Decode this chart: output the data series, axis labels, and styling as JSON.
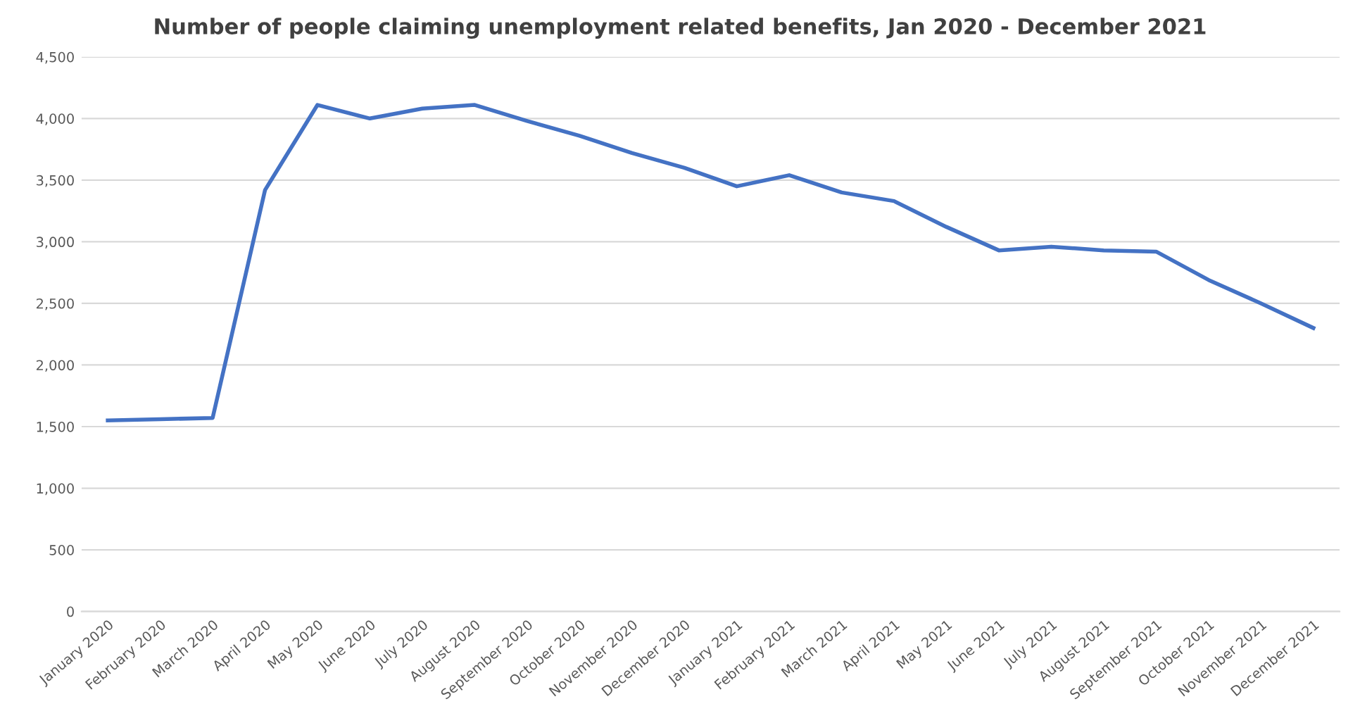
{
  "chart_data": {
    "type": "line",
    "title": "Number of people claiming unemployment related benefits, Jan 2020 - December 2021",
    "categories": [
      "January 2020",
      "February 2020",
      "March 2020",
      "April 2020",
      "May 2020",
      "June 2020",
      "July 2020",
      "August 2020",
      "September 2020",
      "October 2020",
      "November 2020",
      "December 2020",
      "January 2021",
      "February 2021",
      "March 2021",
      "April 2021",
      "May 2021",
      "June 2021",
      "July 2021",
      "August 2021",
      "September 2021",
      "October 2021",
      "November 2021",
      "December 2021"
    ],
    "series": [
      {
        "color": "#4472c4",
        "values": [
          1550,
          1560,
          1570,
          3420,
          4110,
          4000,
          4080,
          4110,
          3980,
          3860,
          3720,
          3600,
          3450,
          3540,
          3400,
          3330,
          3120,
          2930,
          2960,
          2930,
          2920,
          2690,
          2500,
          2300
        ]
      }
    ],
    "ylim": [
      0,
      4500
    ],
    "yticks": [
      0,
      500,
      {
        "value": 1000,
        "label": "1,000"
      },
      {
        "value": 1500,
        "label": "1,500"
      },
      {
        "value": 2000,
        "label": "2,000"
      },
      {
        "value": 2500,
        "label": "2,500"
      },
      {
        "value": 3000,
        "label": "3,000"
      },
      {
        "value": 3500,
        "label": "3,500"
      },
      {
        "value": 4000,
        "label": "4,000"
      },
      {
        "value": 4500,
        "label": "4,500"
      }
    ],
    "grid": "y",
    "marker": "none",
    "line_style": "solid"
  }
}
